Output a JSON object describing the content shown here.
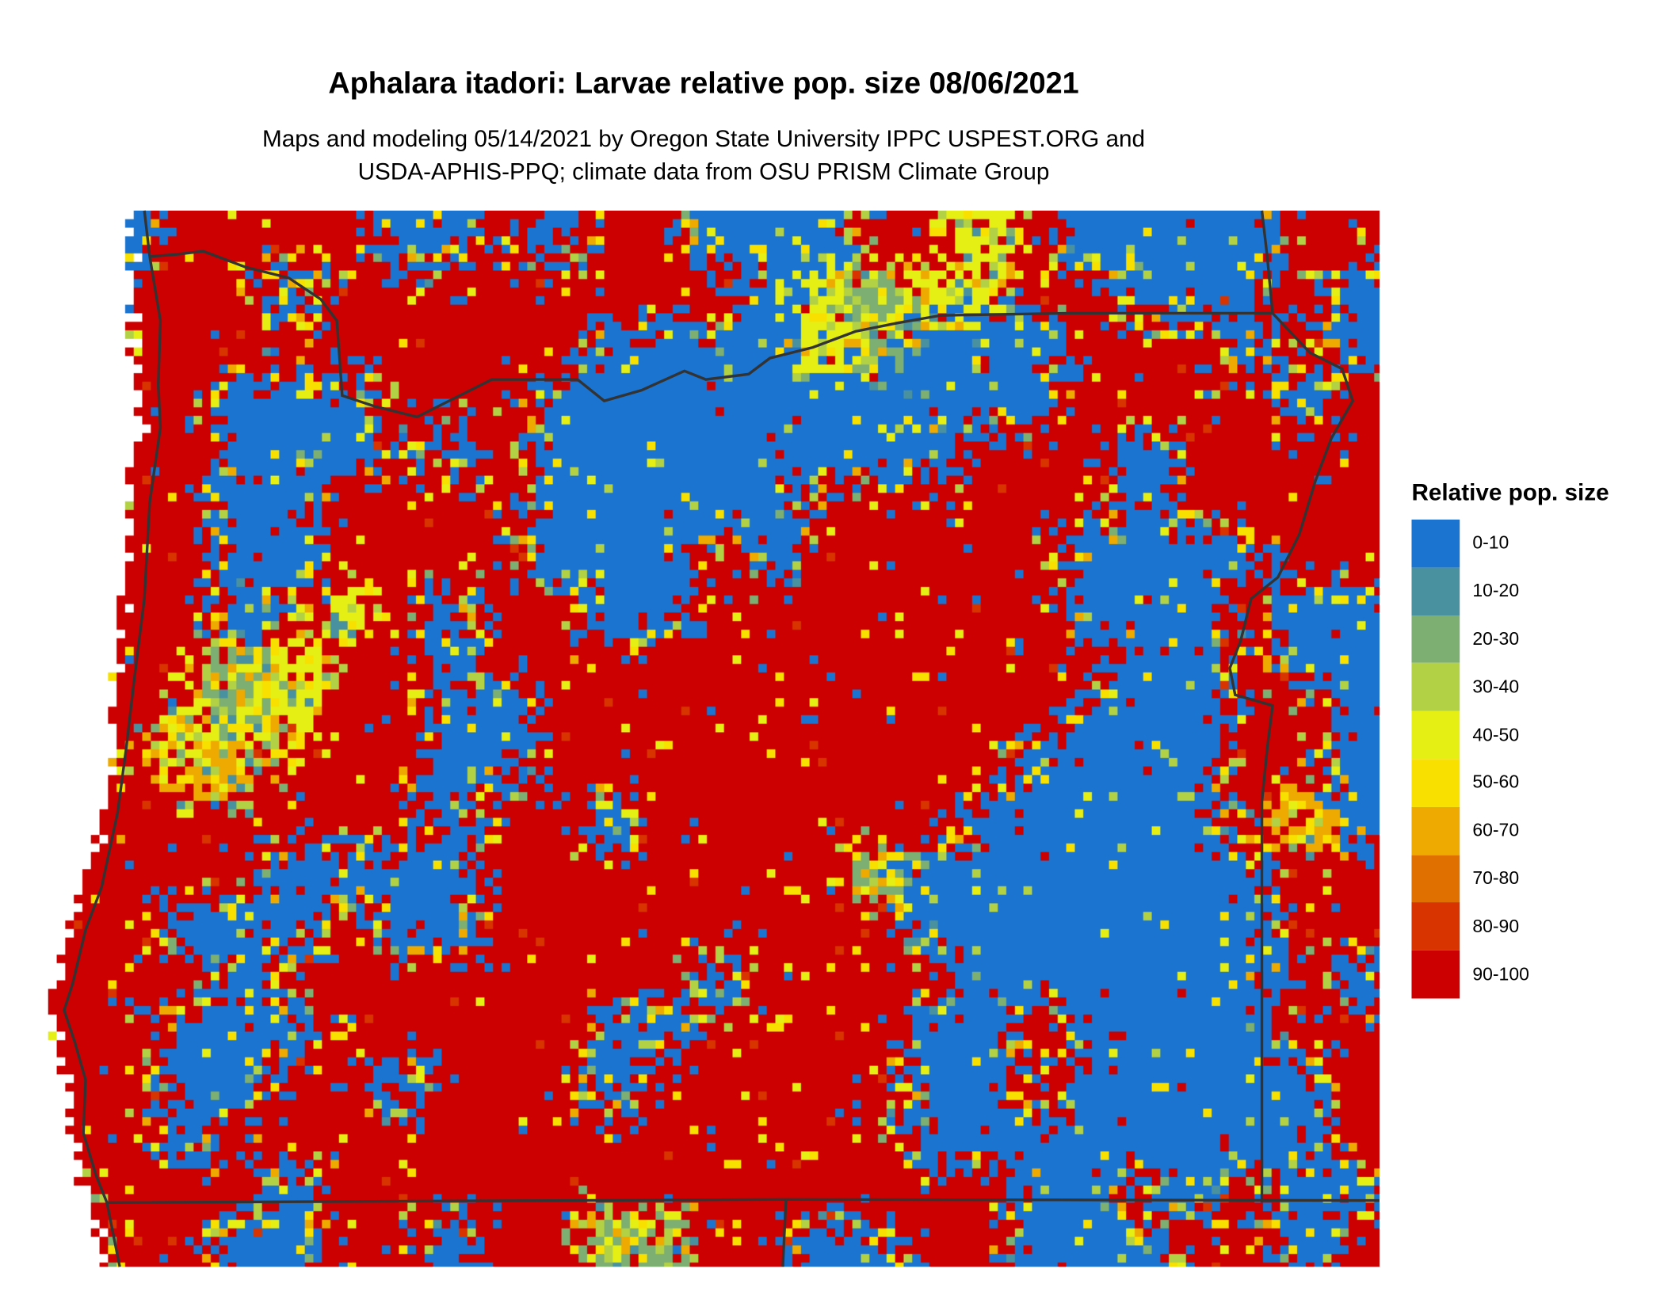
{
  "title": "Aphalara itadori: Larvae relative pop. size 08/06/2021",
  "subtitle_line1": "Maps and modeling 05/14/2021 by Oregon State University IPPC USPEST.ORG and",
  "subtitle_line2": "USDA-APHIS-PPQ; climate data from OSU PRISM Climate Group",
  "legend": {
    "title": "Relative pop. size",
    "items": [
      {
        "label": "0-10",
        "color": "#1b74cf"
      },
      {
        "label": "10-20",
        "color": "#4a91a0"
      },
      {
        "label": "20-30",
        "color": "#7dae72"
      },
      {
        "label": "30-40",
        "color": "#b2d144"
      },
      {
        "label": "40-50",
        "color": "#e6ef14"
      },
      {
        "label": "50-60",
        "color": "#f8e100"
      },
      {
        "label": "60-70",
        "color": "#eeaa00"
      },
      {
        "label": "70-80",
        "color": "#e07000"
      },
      {
        "label": "80-90",
        "color": "#d83400"
      },
      {
        "label": "90-100",
        "color": "#cc0000"
      }
    ]
  },
  "border_color": "#333333"
}
